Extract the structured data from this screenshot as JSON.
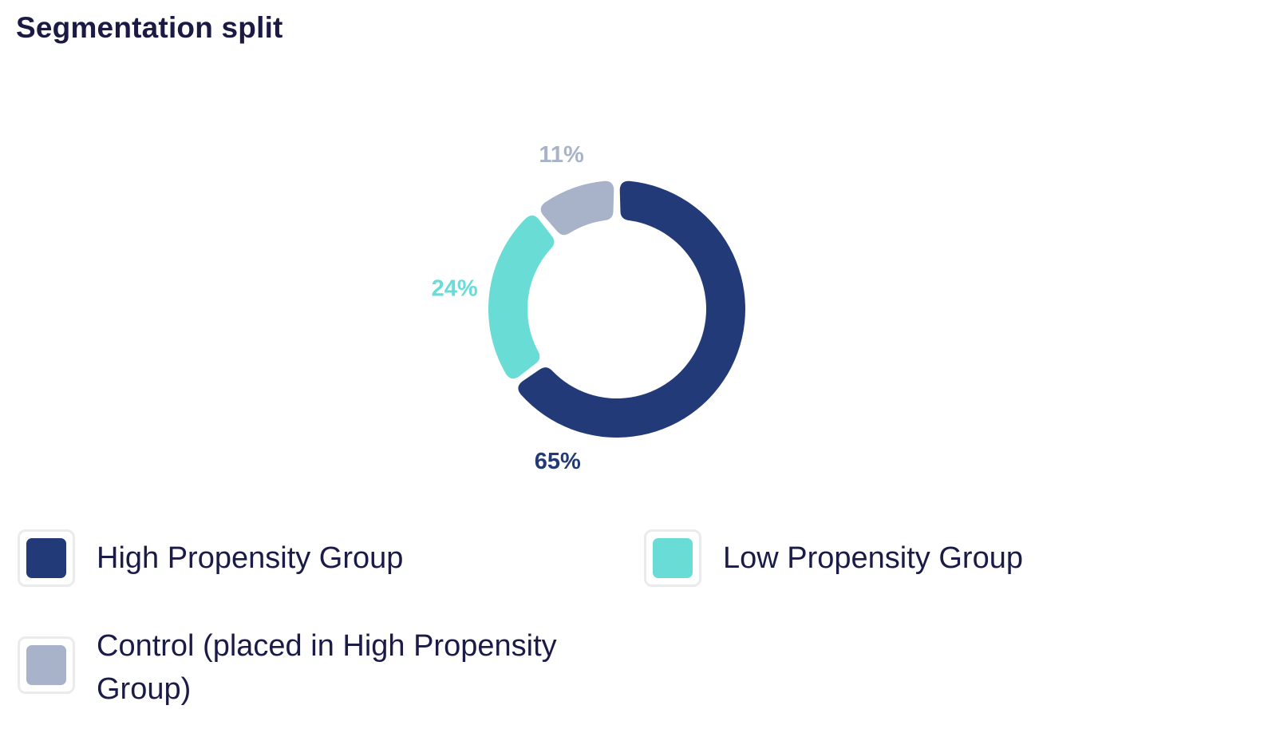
{
  "chart_data": {
    "type": "pie",
    "title": "Segmentation split",
    "donut": true,
    "legend_placement": "bottom",
    "slices": [
      {
        "label": "High Propensity Group",
        "value": 65,
        "value_label": "65%",
        "color": "#233a78"
      },
      {
        "label": "Low Propensity Group",
        "value": 24,
        "value_label": "24%",
        "color": "#6adcd6"
      },
      {
        "label": "Control (placed in High Propensity Group)",
        "value": 11,
        "value_label": "11%",
        "color": "#a8b2c9"
      }
    ]
  }
}
